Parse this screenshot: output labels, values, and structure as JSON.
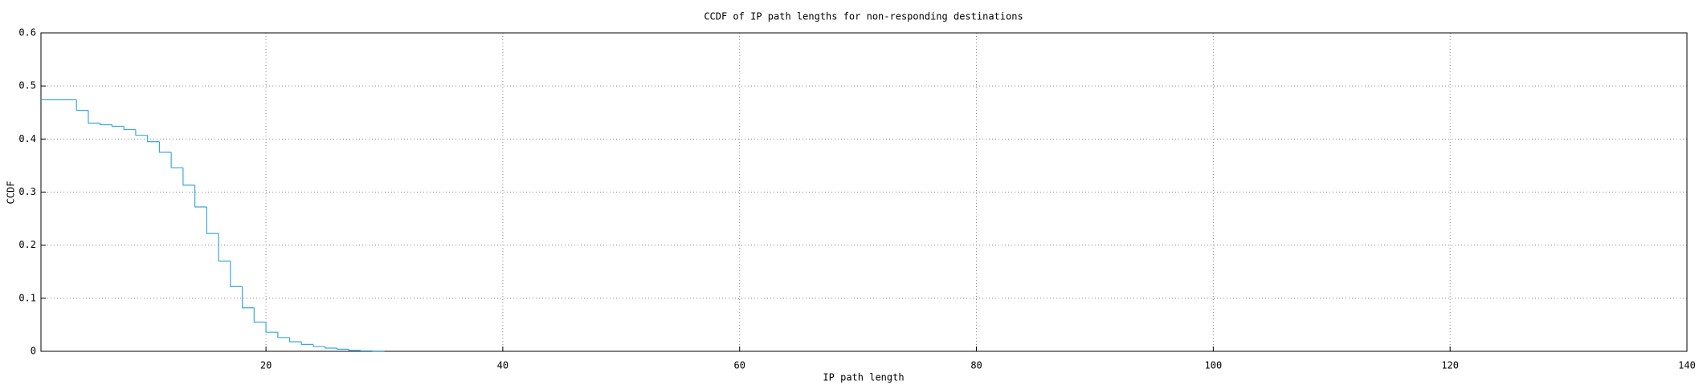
{
  "chart_data": {
    "type": "step",
    "title": "CCDF of IP path lengths for non-responding destinations",
    "x_label": "IP path length",
    "y_label": "CCDF",
    "series": [
      {
        "name": "CCDF",
        "color": "#3aa8e0",
        "x": [
          1,
          4,
          5,
          6,
          7,
          8,
          9,
          10,
          11,
          12,
          13,
          14,
          15,
          16,
          17,
          18,
          19,
          20,
          21,
          22,
          23,
          24,
          25,
          26,
          27,
          28,
          29,
          30
        ],
        "values": [
          0.474,
          0.454,
          0.43,
          0.427,
          0.424,
          0.418,
          0.407,
          0.395,
          0.375,
          0.346,
          0.313,
          0.272,
          0.222,
          0.17,
          0.122,
          0.082,
          0.055,
          0.036,
          0.026,
          0.018,
          0.013,
          0.009,
          0.006,
          0.004,
          0.002,
          0.001,
          0.0005,
          0.0005
        ]
      }
    ],
    "xlim": [
      1,
      140
    ],
    "xticks": [
      20,
      40,
      60,
      80,
      100,
      120,
      140
    ],
    "ylim": [
      0,
      0.6
    ],
    "yticks": [
      0,
      0.1,
      0.2,
      0.3,
      0.4,
      0.5,
      0.6
    ],
    "grid": true
  }
}
